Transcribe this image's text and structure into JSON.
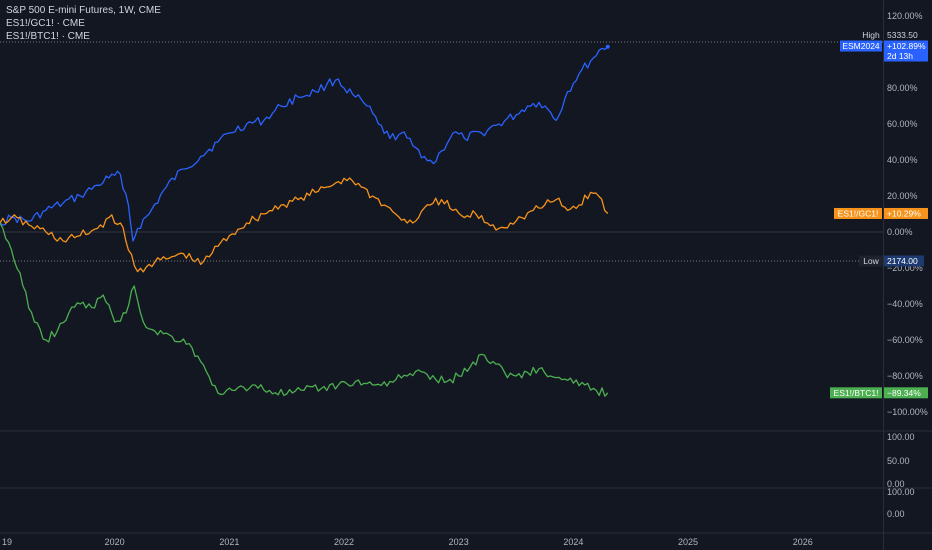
{
  "legend": {
    "main": "S&P 500 E-mini Futures, 1W, CME",
    "s1": "ES1!/GC1! · CME",
    "s2": "ES1!/BTC1! · CME"
  },
  "high": {
    "label": "High",
    "value": "5333.50"
  },
  "low": {
    "label": "Low",
    "value": "2174.00"
  },
  "tags": {
    "esm": {
      "symbol": "ESM2024",
      "change": "+102.89%",
      "countdown": "2d 13h"
    },
    "gc": {
      "symbol": "ES1!/GC1!",
      "change": "+10.29%"
    },
    "btc": {
      "symbol": "ES1!/BTC1!",
      "change": "−89.34%"
    }
  },
  "colors": {
    "background": "#131722",
    "esm": "#2962ff",
    "gc": "#f7931a",
    "btc": "#4caf50",
    "grid": "#2a2e39",
    "text": "#b2b5be"
  },
  "chart_data": {
    "type": "line",
    "percent_scale": true,
    "ylim": [
      -110,
      125
    ],
    "y_ticks": [
      "120.00%",
      "100.00%",
      "80.00%",
      "60.00%",
      "40.00%",
      "20.00%",
      "0.00%",
      "−20.00%",
      "−40.00%",
      "−60.00%",
      "−80.00%",
      "−100.00%"
    ],
    "y_tick_values": [
      120,
      100,
      80,
      60,
      40,
      20,
      0,
      -20,
      -40,
      -60,
      -80,
      -100
    ],
    "x_ticks": [
      "19",
      "2020",
      "2021",
      "2022",
      "2023",
      "2024",
      "2025",
      "2026"
    ],
    "x_tick_values": [
      2019.0,
      2020.0,
      2021.0,
      2022.0,
      2023.0,
      2024.0,
      2025.0,
      2026.0
    ],
    "xlim": [
      2019.0,
      2026.7
    ],
    "series": [
      {
        "name": "ESM2024",
        "color": "#2962ff",
        "x": [
          2019.0,
          2019.1,
          2019.25,
          2019.4,
          2019.55,
          2019.7,
          2019.85,
          2019.95,
          2020.05,
          2020.12,
          2020.16,
          2020.2,
          2020.3,
          2020.45,
          2020.6,
          2020.75,
          2020.9,
          2021.0,
          2021.15,
          2021.3,
          2021.45,
          2021.6,
          2021.75,
          2021.85,
          2021.95,
          2022.0,
          2022.1,
          2022.2,
          2022.3,
          2022.4,
          2022.5,
          2022.6,
          2022.7,
          2022.78,
          2022.85,
          2022.95,
          2023.05,
          2023.2,
          2023.35,
          2023.5,
          2023.6,
          2023.7,
          2023.78,
          2023.85,
          2023.95,
          2024.05,
          2024.15,
          2024.25,
          2024.3
        ],
        "values": [
          5,
          8,
          6,
          12,
          16,
          20,
          26,
          30,
          32,
          15,
          -5,
          2,
          10,
          25,
          35,
          42,
          50,
          55,
          60,
          62,
          70,
          75,
          78,
          82,
          85,
          80,
          75,
          70,
          60,
          52,
          55,
          48,
          42,
          38,
          45,
          55,
          52,
          55,
          60,
          65,
          70,
          72,
          68,
          62,
          78,
          88,
          95,
          102,
          102.89
        ]
      },
      {
        "name": "ES1!/GC1!",
        "color": "#f7931a",
        "x": [
          2019.0,
          2019.1,
          2019.25,
          2019.4,
          2019.55,
          2019.7,
          2019.85,
          2019.95,
          2020.05,
          2020.12,
          2020.2,
          2020.3,
          2020.45,
          2020.6,
          2020.75,
          2020.9,
          2021.0,
          2021.15,
          2021.3,
          2021.45,
          2021.6,
          2021.75,
          2021.85,
          2021.95,
          2022.05,
          2022.15,
          2022.25,
          2022.35,
          2022.45,
          2022.55,
          2022.65,
          2022.75,
          2022.85,
          2022.95,
          2023.05,
          2023.15,
          2023.25,
          2023.35,
          2023.45,
          2023.55,
          2023.65,
          2023.75,
          2023.85,
          2023.95,
          2024.05,
          2024.15,
          2024.22,
          2024.3
        ],
        "values": [
          5,
          8,
          4,
          0,
          -5,
          -2,
          2,
          8,
          5,
          -10,
          -22,
          -18,
          -15,
          -12,
          -18,
          -8,
          -2,
          5,
          10,
          15,
          18,
          22,
          25,
          28,
          30,
          25,
          20,
          15,
          10,
          5,
          8,
          15,
          18,
          12,
          8,
          10,
          5,
          2,
          5,
          8,
          12,
          15,
          18,
          12,
          15,
          22,
          20,
          10.29
        ]
      },
      {
        "name": "ES1!/BTC1!",
        "color": "#4caf50",
        "x": [
          2019.0,
          2019.1,
          2019.2,
          2019.3,
          2019.4,
          2019.5,
          2019.6,
          2019.7,
          2019.8,
          2019.9,
          2020.0,
          2020.1,
          2020.17,
          2020.25,
          2020.35,
          2020.5,
          2020.65,
          2020.75,
          2020.85,
          2020.95,
          2021.05,
          2021.2,
          2021.35,
          2021.5,
          2021.65,
          2021.8,
          2021.95,
          2022.1,
          2022.25,
          2022.4,
          2022.55,
          2022.7,
          2022.8,
          2022.9,
          2023.0,
          2023.1,
          2023.2,
          2023.3,
          2023.4,
          2023.5,
          2023.6,
          2023.7,
          2023.8,
          2023.9,
          2024.0,
          2024.1,
          2024.2,
          2024.3
        ],
        "values": [
          5,
          -10,
          -30,
          -50,
          -60,
          -55,
          -45,
          -40,
          -42,
          -35,
          -50,
          -45,
          -30,
          -50,
          -55,
          -58,
          -62,
          -72,
          -85,
          -90,
          -88,
          -85,
          -88,
          -90,
          -88,
          -87,
          -85,
          -83,
          -85,
          -83,
          -80,
          -78,
          -82,
          -83,
          -80,
          -75,
          -68,
          -72,
          -78,
          -80,
          -78,
          -76,
          -80,
          -82,
          -84,
          -85,
          -88,
          -89.34
        ]
      }
    ]
  },
  "lower_panes": [
    {
      "ticks": [
        "100.00",
        "50.00",
        "0.00"
      ]
    },
    {
      "ticks": [
        "100.00",
        "0.00"
      ]
    }
  ]
}
